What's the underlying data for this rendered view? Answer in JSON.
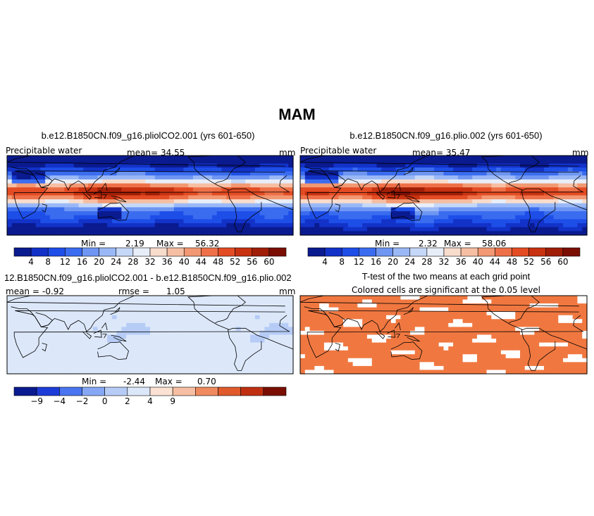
{
  "figure_title": "MAM",
  "chart_data": [
    {
      "type": "heatmap",
      "title": "b.e12.B1850CN.f09_g16.pliolCO2.001 (yrs 601-650)",
      "variable": "Precipitable water",
      "mean_label": "mean=",
      "mean": "34.55",
      "units": "mm",
      "min_label": "Min =",
      "min": "2.19",
      "max_label": "Max =",
      "max": "56.32",
      "colorbar_ticks": [
        "4",
        "8",
        "12",
        "16",
        "20",
        "24",
        "28",
        "32",
        "36",
        "40",
        "44",
        "48",
        "52",
        "56",
        "60"
      ],
      "colorbar_colors": [
        "#0a1a8f",
        "#1232c8",
        "#1e4ee8",
        "#3a6cf0",
        "#6e96f2",
        "#9ab8f6",
        "#c6d8f8",
        "#e8eef8",
        "#f8dccc",
        "#f6bea2",
        "#f29872",
        "#ee7048",
        "#e44c24",
        "#c83210",
        "#a01e06",
        "#7a0e02"
      ]
    },
    {
      "type": "heatmap",
      "title": "b.e12.B1850CN.f09_g16.plio.002 (yrs 601-650)",
      "variable": "Precipitable water",
      "mean_label": "mean=",
      "mean": "35.47",
      "units": "mm",
      "min_label": "Min =",
      "min": "2.32",
      "max_label": "Max =",
      "max": "58.06",
      "colorbar_ticks": [
        "4",
        "8",
        "12",
        "16",
        "20",
        "24",
        "28",
        "32",
        "36",
        "40",
        "44",
        "48",
        "52",
        "56",
        "60"
      ],
      "colorbar_colors": [
        "#0a1a8f",
        "#1232c8",
        "#1e4ee8",
        "#3a6cf0",
        "#6e96f2",
        "#9ab8f6",
        "#c6d8f8",
        "#e8eef8",
        "#f8dccc",
        "#f6bea2",
        "#f29872",
        "#ee7048",
        "#e44c24",
        "#c83210",
        "#a01e06",
        "#7a0e02"
      ]
    },
    {
      "type": "heatmap",
      "title": "12.B1850CN.f09_g16.pliolCO2.001 - b.e12.B1850CN.f09_g16.plio.002",
      "mean_label": "mean =",
      "mean": "-0.92",
      "rmse_label": "rmse =",
      "rmse": "1.05",
      "units": "mm",
      "min_label": "Min =",
      "min": "-2.44",
      "max_label": "Max =",
      "max": "0.70",
      "colorbar_ticks": [
        "-9",
        "-4",
        "-2",
        "0",
        "2",
        "4",
        "9"
      ],
      "colorbar_colors": [
        "#0a1a8f",
        "#1e3cd8",
        "#4a74f0",
        "#86a8f4",
        "#b6ccf6",
        "#dce8fa",
        "#fbe2d2",
        "#f6bea2",
        "#ee8a5e",
        "#e05a2c",
        "#c03010",
        "#7a0e02"
      ]
    },
    {
      "type": "heatmap",
      "title": "T-test of the two means at each grid point",
      "subtitle": "Colored cells are significant at the 0.05 level",
      "significant_color": "#f07840"
    }
  ]
}
